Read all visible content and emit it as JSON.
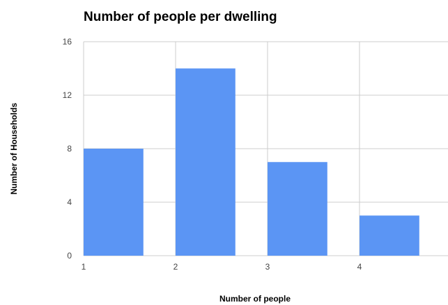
{
  "chart_data": {
    "type": "bar",
    "title": "Number of people per dwelling",
    "xlabel": "Number of people",
    "ylabel": "Number of Households",
    "x_ticks": [
      "1",
      "2",
      "3",
      "4"
    ],
    "y_ticks": [
      "0",
      "4",
      "8",
      "12",
      "16"
    ],
    "xlim": [
      1,
      5
    ],
    "ylim": [
      0,
      16
    ],
    "bar_width": 0.65,
    "bars": [
      {
        "x": 1,
        "value": 8
      },
      {
        "x": 2,
        "value": 14
      },
      {
        "x": 3,
        "value": 7
      },
      {
        "x": 4,
        "value": 3
      }
    ],
    "grid": true,
    "legend": "none",
    "colors": {
      "bar": "#5b95f4",
      "grid": "#cccccc",
      "tick_text": "#444444"
    }
  }
}
